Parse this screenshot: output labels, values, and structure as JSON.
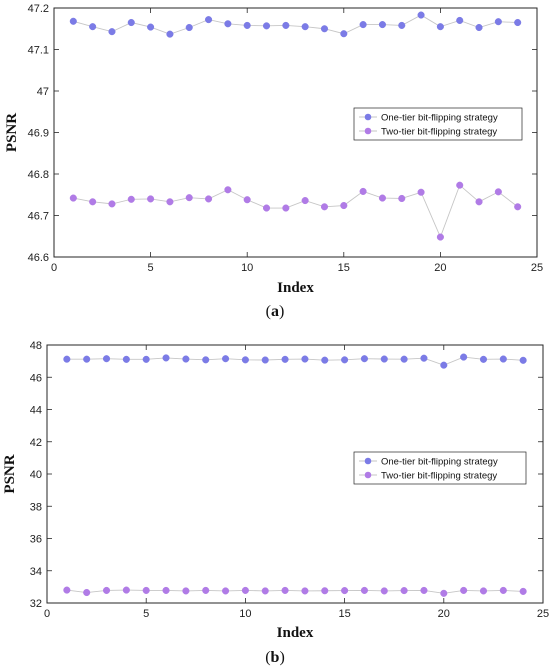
{
  "chart_data": [
    {
      "type": "line",
      "caption_letter": "a",
      "xlabel": "Index",
      "ylabel": "PSNR",
      "xlim": [
        0,
        25
      ],
      "ylim": [
        46.6,
        47.2
      ],
      "xticks": [
        0,
        5,
        10,
        15,
        20,
        25
      ],
      "yticks": [
        46.6,
        46.7,
        46.8,
        46.9,
        47,
        47.1,
        47.2
      ],
      "legend_position": "right",
      "x": [
        1,
        2,
        3,
        4,
        5,
        6,
        7,
        8,
        9,
        10,
        11,
        12,
        13,
        14,
        15,
        16,
        17,
        18,
        19,
        20,
        21,
        22,
        23,
        24
      ],
      "series": [
        {
          "name": "One-tier bit-flipping strategy",
          "color": "#7b7be6",
          "values": [
            47.168,
            47.155,
            47.143,
            47.165,
            47.154,
            47.137,
            47.153,
            47.172,
            47.162,
            47.158,
            47.157,
            47.158,
            47.155,
            47.15,
            47.138,
            47.16,
            47.16,
            47.158,
            47.183,
            47.155,
            47.17,
            47.153,
            47.167,
            47.165
          ]
        },
        {
          "name": "Two-tier bit-flipping strategy",
          "color": "#b07be6",
          "values": [
            46.742,
            46.733,
            46.728,
            46.739,
            46.74,
            46.733,
            46.743,
            46.74,
            46.762,
            46.738,
            46.718,
            46.718,
            46.736,
            46.721,
            46.724,
            46.758,
            46.742,
            46.741,
            46.756,
            46.648,
            46.773,
            46.733,
            46.757,
            46.721
          ]
        }
      ]
    },
    {
      "type": "line",
      "caption_letter": "b",
      "xlabel": "Index",
      "ylabel": "PSNR",
      "xlim": [
        0,
        25
      ],
      "ylim": [
        32,
        48
      ],
      "xticks": [
        0,
        5,
        10,
        15,
        20,
        25
      ],
      "yticks": [
        32,
        34,
        36,
        38,
        40,
        42,
        44,
        46,
        48
      ],
      "legend_position": "right",
      "x": [
        1,
        2,
        3,
        4,
        5,
        6,
        7,
        8,
        9,
        10,
        11,
        12,
        13,
        14,
        15,
        16,
        17,
        18,
        19,
        20,
        21,
        22,
        23,
        24
      ],
      "series": [
        {
          "name": "One-tier bit-flipping strategy",
          "color": "#7b7be6",
          "values": [
            47.12,
            47.12,
            47.15,
            47.11,
            47.11,
            47.2,
            47.13,
            47.08,
            47.15,
            47.08,
            47.07,
            47.11,
            47.13,
            47.06,
            47.08,
            47.15,
            47.13,
            47.12,
            47.18,
            46.75,
            47.25,
            47.11,
            47.13,
            47.05
          ]
        },
        {
          "name": "Two-tier bit-flipping strategy",
          "color": "#b07be6",
          "values": [
            32.8,
            32.65,
            32.78,
            32.8,
            32.78,
            32.78,
            32.75,
            32.78,
            32.75,
            32.78,
            32.75,
            32.78,
            32.75,
            32.76,
            32.77,
            32.78,
            32.75,
            32.77,
            32.78,
            32.6,
            32.78,
            32.75,
            32.78,
            32.72
          ]
        }
      ]
    }
  ]
}
